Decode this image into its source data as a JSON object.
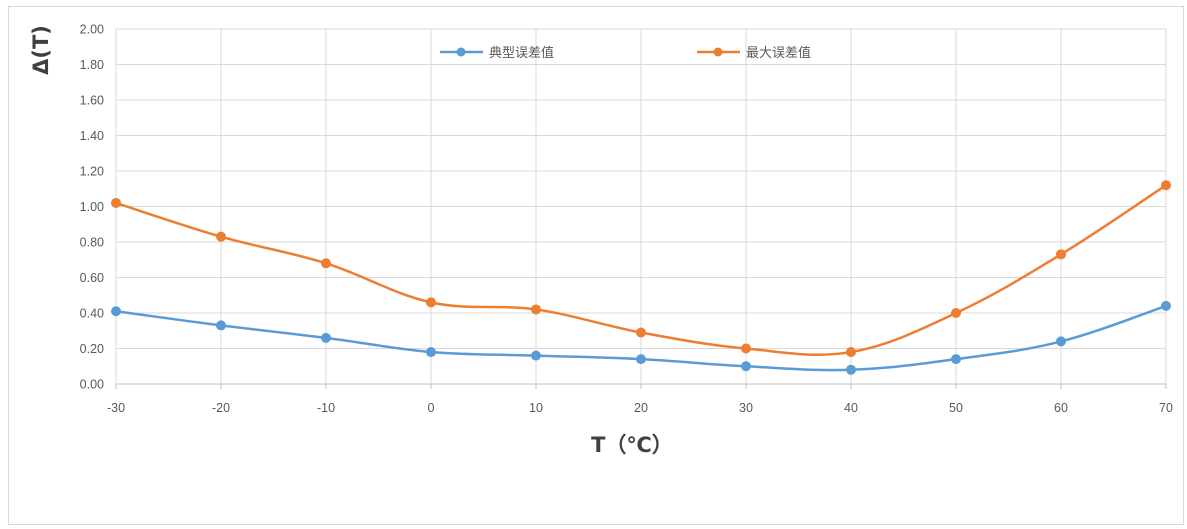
{
  "chart_data": {
    "type": "line",
    "x": [
      -30,
      -20,
      -10,
      0,
      10,
      20,
      30,
      40,
      50,
      60,
      70
    ],
    "series": [
      {
        "name": "典型误差值",
        "color": "#5b9bd5",
        "values": [
          0.41,
          0.33,
          0.26,
          0.18,
          0.16,
          0.14,
          0.1,
          0.08,
          0.14,
          0.24,
          0.44
        ]
      },
      {
        "name": "最大误差值",
        "color": "#ed7d31",
        "values": [
          1.02,
          0.83,
          0.68,
          0.46,
          0.42,
          0.29,
          0.2,
          0.18,
          0.4,
          0.73,
          1.12
        ]
      }
    ],
    "xlabel": "T（℃）",
    "ylabel": "Δ(T)",
    "xlim": [
      -30,
      70
    ],
    "ylim": [
      0,
      2
    ],
    "x_ticks": [
      "-30",
      "-20",
      "-10",
      "0",
      "10",
      "20",
      "30",
      "40",
      "50",
      "60",
      "70"
    ],
    "y_ticks": [
      "0.00",
      "0.20",
      "0.40",
      "0.60",
      "0.80",
      "1.00",
      "1.20",
      "1.40",
      "1.60",
      "1.80",
      "2.00"
    ],
    "grid": true,
    "legend_position": "top-center"
  }
}
